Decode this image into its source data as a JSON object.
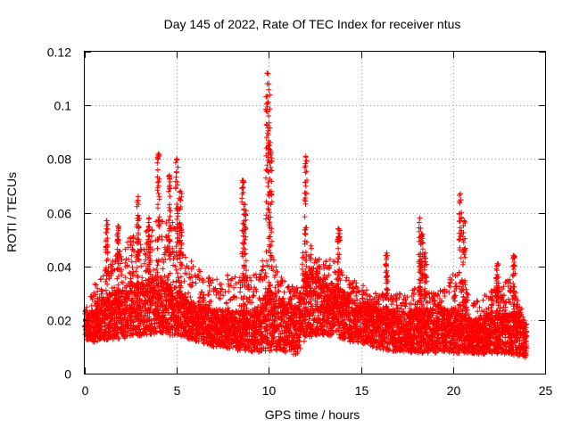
{
  "chart_data": {
    "type": "scatter",
    "title": "Day 145 of 2022, Rate Of TEC Index for receiver ntus",
    "xlabel": "GPS time / hours",
    "ylabel": "ROTI / TECUs",
    "xlim": [
      0,
      25
    ],
    "ylim": [
      0,
      0.12
    ],
    "xticks": [
      0,
      5,
      10,
      15,
      20,
      25
    ],
    "xtick_labels": [
      "0",
      "5",
      "10",
      "15",
      "20",
      "25"
    ],
    "yticks": [
      0,
      0.02,
      0.04,
      0.06,
      0.08,
      0.1,
      0.12
    ],
    "ytick_labels": [
      "0",
      "0.02",
      "0.04",
      "0.06",
      "0.08",
      "0.1",
      "0.12"
    ],
    "grid": true,
    "marker": "+",
    "color": "#ff0000",
    "envelope": {
      "x": [
        0,
        0.5,
        1,
        1.5,
        2,
        2.5,
        3,
        3.5,
        4,
        4.5,
        5,
        5.5,
        6,
        6.5,
        7,
        7.5,
        8,
        8.5,
        9,
        9.5,
        10,
        10.5,
        11,
        11.5,
        12,
        12.5,
        13,
        13.5,
        14,
        14.5,
        15,
        15.5,
        16,
        16.5,
        17,
        17.5,
        18,
        18.5,
        19,
        19.5,
        20,
        20.5,
        21,
        21.5,
        22,
        22.5,
        23,
        23.5,
        24
      ],
      "y_low": [
        0.011,
        0.009,
        0.009,
        0.009,
        0.009,
        0.009,
        0.01,
        0.01,
        0.01,
        0.01,
        0.01,
        0.01,
        0.009,
        0.008,
        0.007,
        0.007,
        0.006,
        0.005,
        0.005,
        0.004,
        0.003,
        0.004,
        0.004,
        0.003,
        0.007,
        0.009,
        0.01,
        0.01,
        0.009,
        0.008,
        0.008,
        0.007,
        0.006,
        0.005,
        0.005,
        0.005,
        0.004,
        0.004,
        0.004,
        0.004,
        0.004,
        0.004,
        0.005,
        0.004,
        0.004,
        0.004,
        0.004,
        0.003,
        0.003
      ],
      "y_typ": [
        0.017,
        0.018,
        0.02,
        0.022,
        0.022,
        0.024,
        0.024,
        0.025,
        0.026,
        0.024,
        0.023,
        0.021,
        0.019,
        0.018,
        0.017,
        0.017,
        0.016,
        0.016,
        0.016,
        0.017,
        0.02,
        0.019,
        0.017,
        0.016,
        0.026,
        0.027,
        0.024,
        0.024,
        0.022,
        0.02,
        0.019,
        0.018,
        0.017,
        0.016,
        0.016,
        0.016,
        0.016,
        0.016,
        0.016,
        0.016,
        0.016,
        0.016,
        0.014,
        0.014,
        0.015,
        0.015,
        0.015,
        0.015,
        0.013
      ],
      "y_high": [
        0.023,
        0.033,
        0.038,
        0.042,
        0.048,
        0.052,
        0.05,
        0.055,
        0.062,
        0.056,
        0.058,
        0.045,
        0.04,
        0.037,
        0.035,
        0.038,
        0.036,
        0.036,
        0.036,
        0.04,
        0.048,
        0.038,
        0.033,
        0.032,
        0.052,
        0.045,
        0.042,
        0.045,
        0.038,
        0.035,
        0.034,
        0.03,
        0.03,
        0.03,
        0.03,
        0.029,
        0.033,
        0.032,
        0.03,
        0.032,
        0.038,
        0.036,
        0.026,
        0.028,
        0.031,
        0.033,
        0.036,
        0.03,
        0.018
      ]
    },
    "peaks": [
      {
        "x": 1.2,
        "y": 0.057
      },
      {
        "x": 1.8,
        "y": 0.055
      },
      {
        "x": 2.9,
        "y": 0.066
      },
      {
        "x": 3.5,
        "y": 0.058
      },
      {
        "x": 4.0,
        "y": 0.082
      },
      {
        "x": 4.6,
        "y": 0.074
      },
      {
        "x": 5.0,
        "y": 0.08
      },
      {
        "x": 5.2,
        "y": 0.068
      },
      {
        "x": 8.6,
        "y": 0.072
      },
      {
        "x": 8.7,
        "y": 0.063
      },
      {
        "x": 9.9,
        "y": 0.112
      },
      {
        "x": 10.0,
        "y": 0.108
      },
      {
        "x": 10.1,
        "y": 0.083
      },
      {
        "x": 12.0,
        "y": 0.081
      },
      {
        "x": 13.8,
        "y": 0.054
      },
      {
        "x": 16.4,
        "y": 0.045
      },
      {
        "x": 18.2,
        "y": 0.058
      },
      {
        "x": 18.3,
        "y": 0.052
      },
      {
        "x": 18.5,
        "y": 0.045
      },
      {
        "x": 20.4,
        "y": 0.067
      },
      {
        "x": 20.6,
        "y": 0.057
      },
      {
        "x": 22.4,
        "y": 0.041
      },
      {
        "x": 23.3,
        "y": 0.044
      }
    ]
  }
}
